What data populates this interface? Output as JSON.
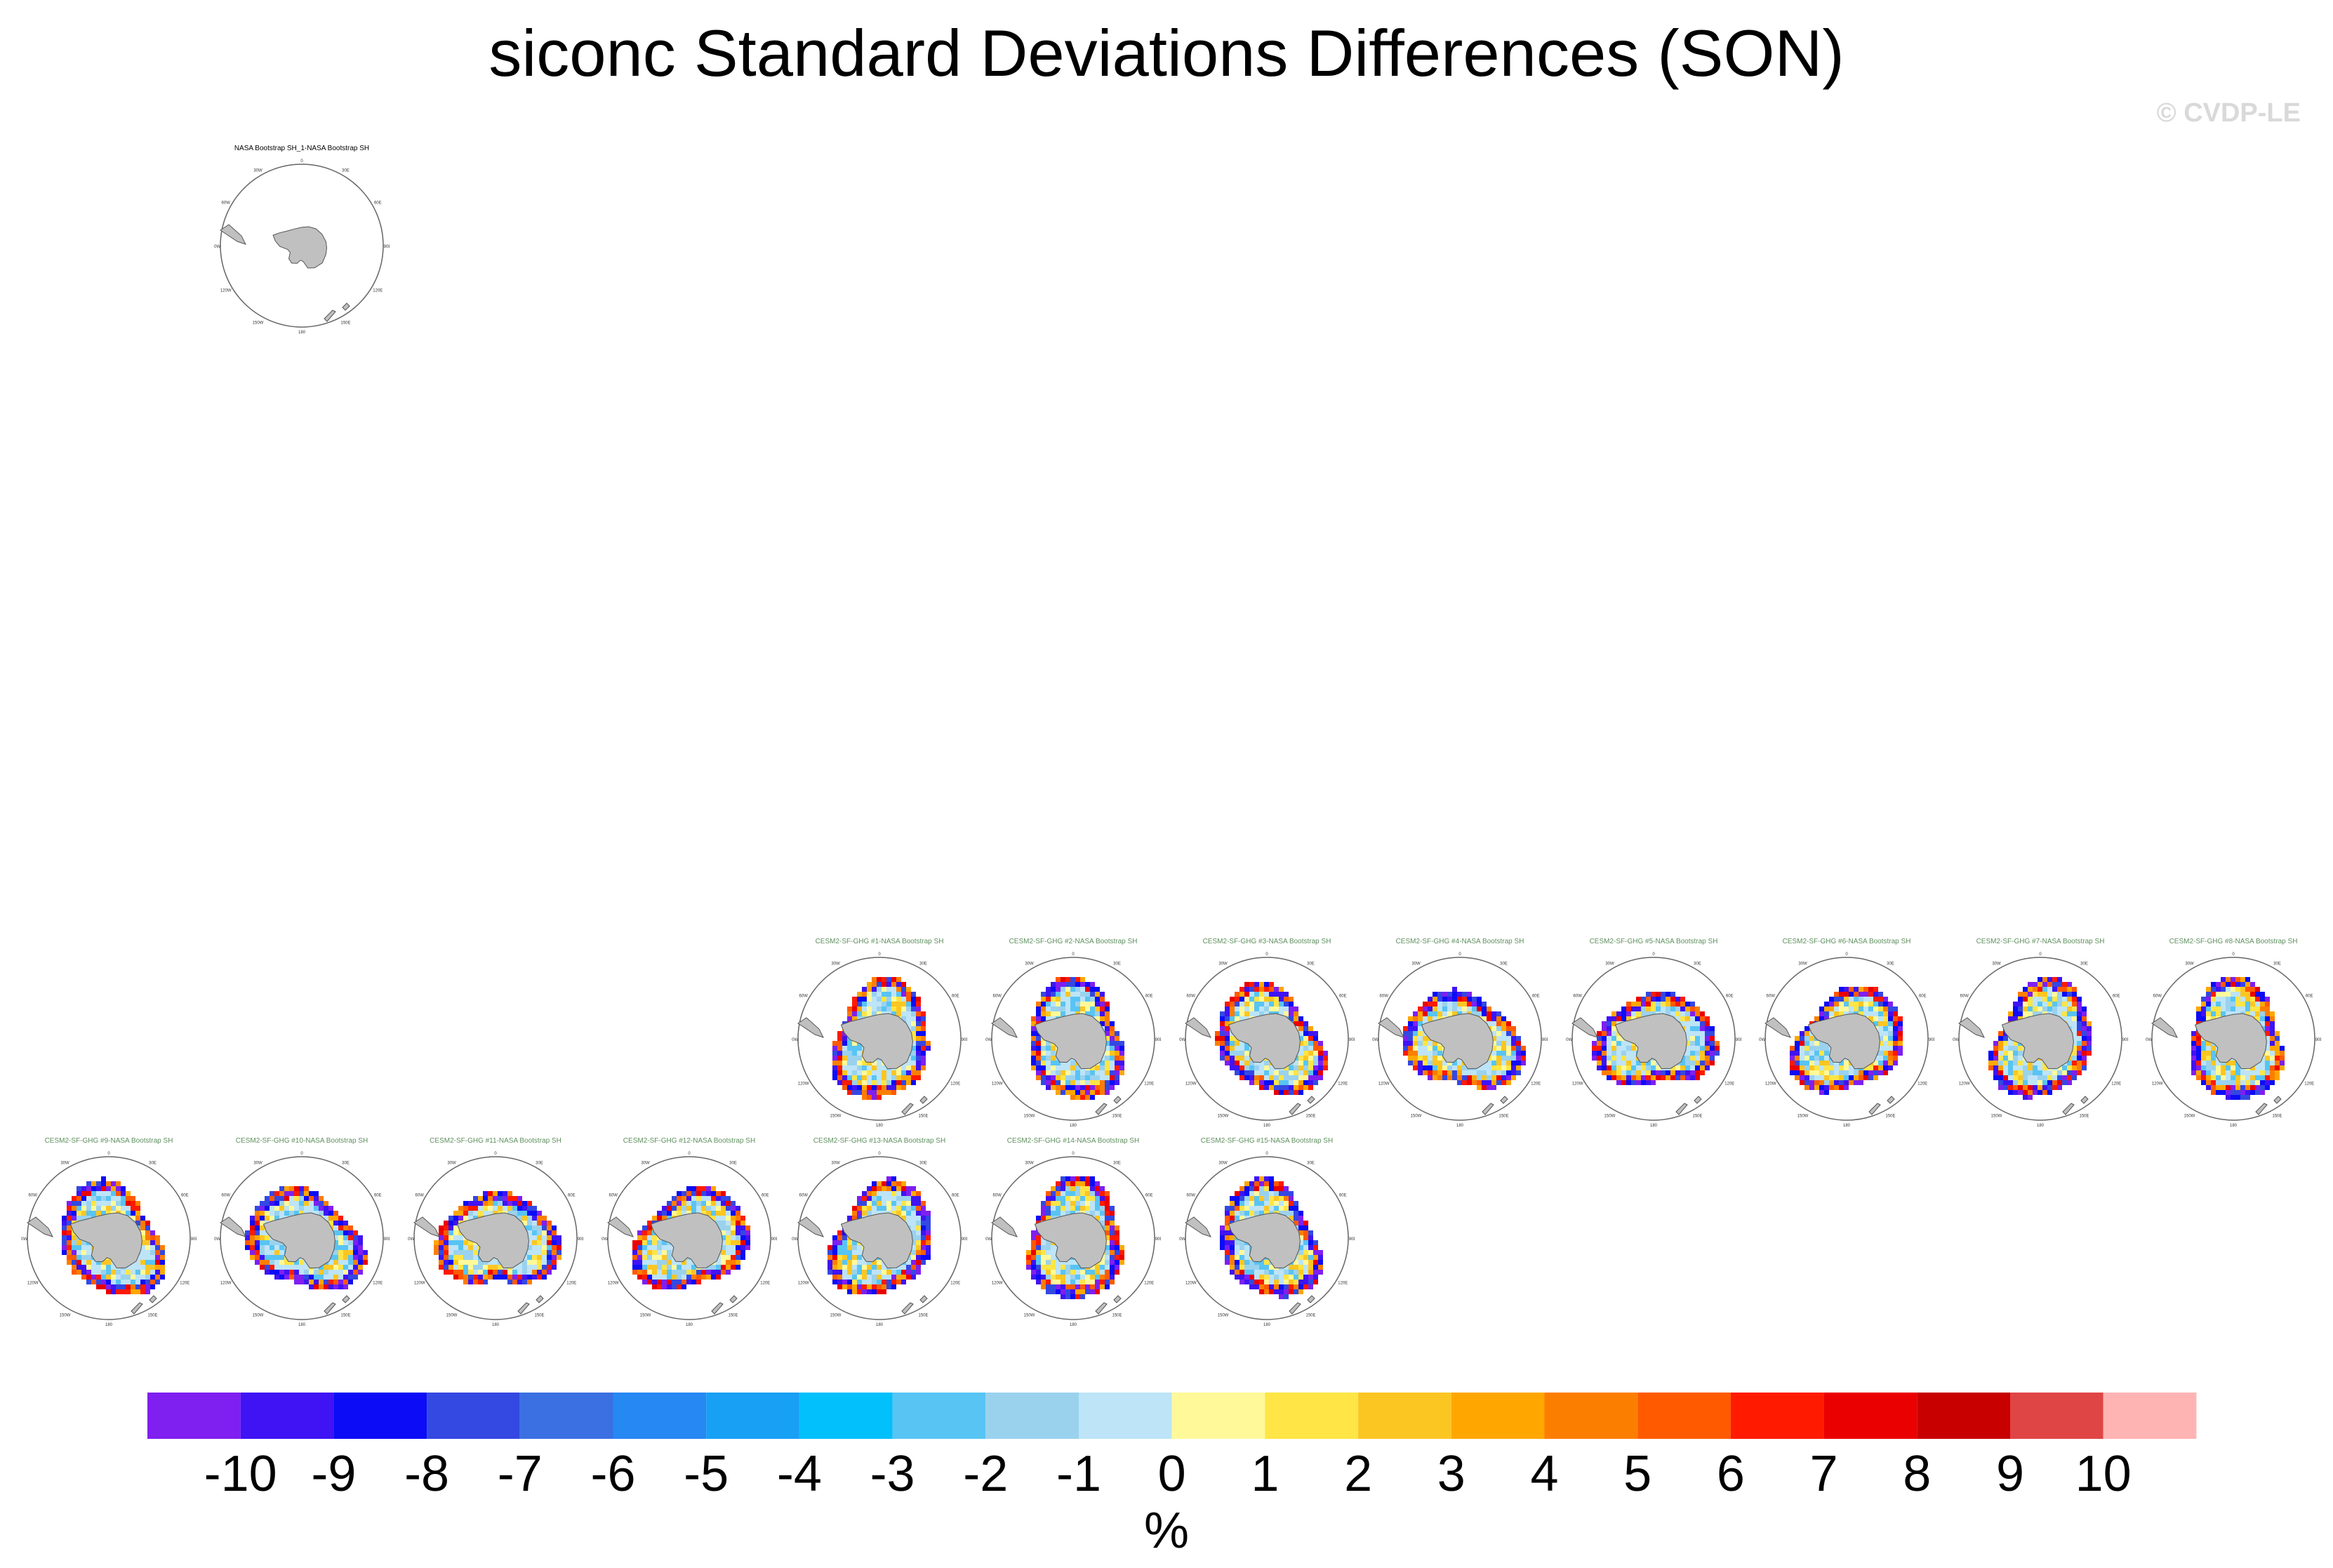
{
  "title": "siconc Standard Deviations Differences (SON)",
  "watermark": "© CVDP-LE",
  "chart_data": {
    "type": "heatmap",
    "projection": "south-polar-stereographic",
    "title": "siconc Standard Deviations Differences (SON)",
    "units": "%",
    "colorbar": {
      "levels": [
        -10,
        -9,
        -8,
        -7,
        -6,
        -5,
        -4,
        -3,
        -2,
        -1,
        0,
        1,
        2,
        3,
        4,
        5,
        6,
        7,
        8,
        9,
        10
      ],
      "colors": [
        "#7f1ff0",
        "#3f13f3",
        "#0c0cf6",
        "#3448e2",
        "#3b70e2",
        "#2688f3",
        "#17a0f4",
        "#02c0fc",
        "#58c4f4",
        "#9ad2ee",
        "#bde4f7",
        "#fff99a",
        "#ffe545",
        "#fcc622",
        "#ffa700",
        "#fc7e00",
        "#ff5a00",
        "#ff1a00",
        "#ea0000",
        "#c80000",
        "#e04545",
        "#ffb4b4"
      ]
    },
    "lon_labels": [
      "0",
      "30E",
      "60E",
      "90E",
      "120E",
      "150E",
      "180",
      "150W",
      "120W",
      "90W",
      "60W",
      "30W"
    ],
    "panels": [
      {
        "id": "obs",
        "title": "NASA Bootstrap SH_1-NASA Bootstrap SH",
        "title_color": "#000000",
        "has_data": false
      },
      {
        "id": "m1",
        "title": "CESM2-SF-GHG #1-NASA Bootstrap SH",
        "title_color": "#5e8f5e",
        "has_data": true
      },
      {
        "id": "m2",
        "title": "CESM2-SF-GHG #2-NASA Bootstrap SH",
        "title_color": "#5e8f5e",
        "has_data": true
      },
      {
        "id": "m3",
        "title": "CESM2-SF-GHG #3-NASA Bootstrap SH",
        "title_color": "#5e8f5e",
        "has_data": true
      },
      {
        "id": "m4",
        "title": "CESM2-SF-GHG #4-NASA Bootstrap SH",
        "title_color": "#5e8f5e",
        "has_data": true
      },
      {
        "id": "m5",
        "title": "CESM2-SF-GHG #5-NASA Bootstrap SH",
        "title_color": "#5e8f5e",
        "has_data": true
      },
      {
        "id": "m6",
        "title": "CESM2-SF-GHG #6-NASA Bootstrap SH",
        "title_color": "#5e8f5e",
        "has_data": true
      },
      {
        "id": "m7",
        "title": "CESM2-SF-GHG #7-NASA Bootstrap SH",
        "title_color": "#5e8f5e",
        "has_data": true
      },
      {
        "id": "m8",
        "title": "CESM2-SF-GHG #8-NASA Bootstrap SH",
        "title_color": "#5e8f5e",
        "has_data": true
      },
      {
        "id": "m9",
        "title": "CESM2-SF-GHG #9-NASA Bootstrap SH",
        "title_color": "#5e8f5e",
        "has_data": true
      },
      {
        "id": "m10",
        "title": "CESM2-SF-GHG #10-NASA Bootstrap SH",
        "title_color": "#5e8f5e",
        "has_data": true
      },
      {
        "id": "m11",
        "title": "CESM2-SF-GHG #11-NASA Bootstrap SH",
        "title_color": "#5e8f5e",
        "has_data": true
      },
      {
        "id": "m12",
        "title": "CESM2-SF-GHG #12-NASA Bootstrap SH",
        "title_color": "#5e8f5e",
        "has_data": true
      },
      {
        "id": "m13",
        "title": "CESM2-SF-GHG #13-NASA Bootstrap SH",
        "title_color": "#5e8f5e",
        "has_data": true
      },
      {
        "id": "m14",
        "title": "CESM2-SF-GHG #14-NASA Bootstrap SH",
        "title_color": "#5e8f5e",
        "has_data": true
      },
      {
        "id": "m15",
        "title": "CESM2-SF-GHG #15-NASA Bootstrap SH",
        "title_color": "#5e8f5e",
        "has_data": true
      }
    ]
  }
}
